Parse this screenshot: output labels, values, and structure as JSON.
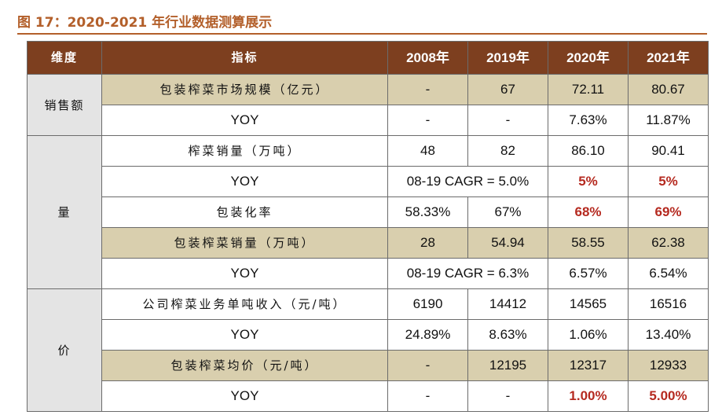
{
  "figure": {
    "title": "图 17：2020-2021 年行业数据测算展示"
  },
  "table": {
    "headers": [
      "维度",
      "指标",
      "2008年",
      "2019年",
      "2020年",
      "2021年"
    ],
    "dimensions": {
      "sales": "销售额",
      "volume": "量",
      "price": "价"
    },
    "rows": [
      {
        "indicator": "包装榨菜市场规模（亿元）",
        "v2008": "-",
        "v2019": "67",
        "v2020": "72.11",
        "v2021": "80.67",
        "highlight": true
      },
      {
        "indicator": "YOY",
        "v2008": "-",
        "v2019": "-",
        "v2020": "7.63%",
        "v2021": "11.87%"
      },
      {
        "indicator": "榨菜销量（万吨）",
        "v2008": "48",
        "v2019": "82",
        "v2020": "86.10",
        "v2021": "90.41"
      },
      {
        "indicator": "YOY",
        "merged": "08-19 CAGR = 5.0%",
        "v2020": "5%",
        "v2021": "5%",
        "red": true
      },
      {
        "indicator": "包装化率",
        "v2008": "58.33%",
        "v2019": "67%",
        "v2020": "68%",
        "v2021": "69%",
        "red": true
      },
      {
        "indicator": "包装榨菜销量（万吨）",
        "v2008": "28",
        "v2019": "54.94",
        "v2020": "58.55",
        "v2021": "62.38",
        "highlight": true
      },
      {
        "indicator": "YOY",
        "merged": "08-19 CAGR = 6.3%",
        "v2020": "6.57%",
        "v2021": "6.54%"
      },
      {
        "indicator": "公司榨菜业务单吨收入（元/吨）",
        "v2008": "6190",
        "v2019": "14412",
        "v2020": "14565",
        "v2021": "16516"
      },
      {
        "indicator": "YOY",
        "v2008": "24.89%",
        "v2019": "8.63%",
        "v2020": "1.06%",
        "v2021": "13.40%"
      },
      {
        "indicator": "包装榨菜均价（元/吨）",
        "v2008": "-",
        "v2019": "12195",
        "v2020": "12317",
        "v2021": "12933",
        "highlight": true
      },
      {
        "indicator": "YOY",
        "v2008": "-",
        "v2019": "-",
        "v2020": "1.00%",
        "v2021": "5.00%",
        "red": true
      }
    ]
  }
}
